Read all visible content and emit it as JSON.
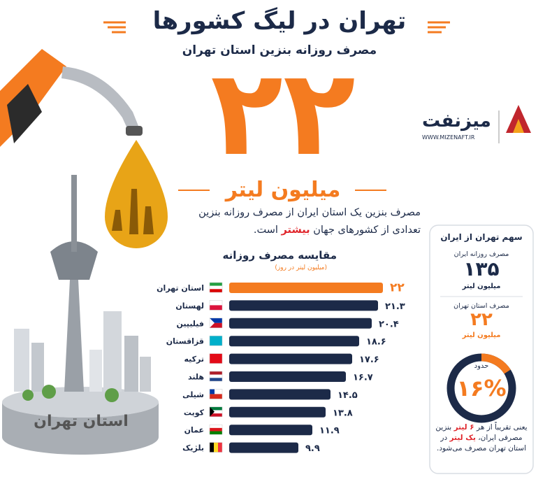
{
  "header": {
    "title": "تهران در لیگ کشورها",
    "subtitle": "مصرف روزانه بنزین استان تهران",
    "big_number": "۲۲",
    "big_unit": "میلیون لیتر"
  },
  "brand": {
    "name": "میزنفت",
    "url": "WWW.MIZENAFT.IR"
  },
  "description": {
    "before": "مصرف بنزین یک استان ایران از مصرف روزانه بنزین تعدادی از کشورهای جهان",
    "highlight": "بیشتر",
    "after": "است."
  },
  "illustration": {
    "label": "استان تهران"
  },
  "chart_data": {
    "type": "bar",
    "orientation": "horizontal",
    "title": "مقایسه مصرف روزانه",
    "subtitle": "(میلیون لیتر در روز)",
    "categories": [
      "استان تهران",
      "لهستان",
      "فیلیپین",
      "قزاقستان",
      "ترکیه",
      "هلند",
      "شیلی",
      "کویت",
      "عمان",
      "بلژیک"
    ],
    "values": [
      22,
      21.3,
      20.4,
      18.6,
      17.6,
      16.7,
      14.5,
      13.8,
      11.9,
      9.9
    ],
    "value_labels": [
      "۲۲",
      "۲۱.۳",
      "۲۰.۴",
      "۱۸.۶",
      "۱۷.۶",
      "۱۶.۷",
      "۱۴.۵",
      "۱۳.۸",
      "۱۱.۹",
      "۹.۹"
    ],
    "colors": [
      "#f47b20",
      "#1c2a48",
      "#1c2a48",
      "#1c2a48",
      "#1c2a48",
      "#1c2a48",
      "#1c2a48",
      "#1c2a48",
      "#1c2a48",
      "#1c2a48"
    ]
  },
  "sidebar": {
    "title": "سهم تهران از ایران",
    "iran_label": "مصرف روزانه ایران",
    "iran_value": "۱۳۵",
    "iran_unit": "میلیون لیتر",
    "tehran_label": "مصرف استان تهران",
    "tehran_value": "۲۲",
    "tehran_unit": "میلیون لیتر",
    "share_prefix": "حدود",
    "share": {
      "value": 16,
      "label": "۱۶%"
    },
    "note": [
      "یعنی تقریباً از هر",
      "۶ لیتر",
      "بنزین مصرفی ایران،",
      "یک لیتر",
      "در استان تهران مصرف می‌شود."
    ]
  }
}
